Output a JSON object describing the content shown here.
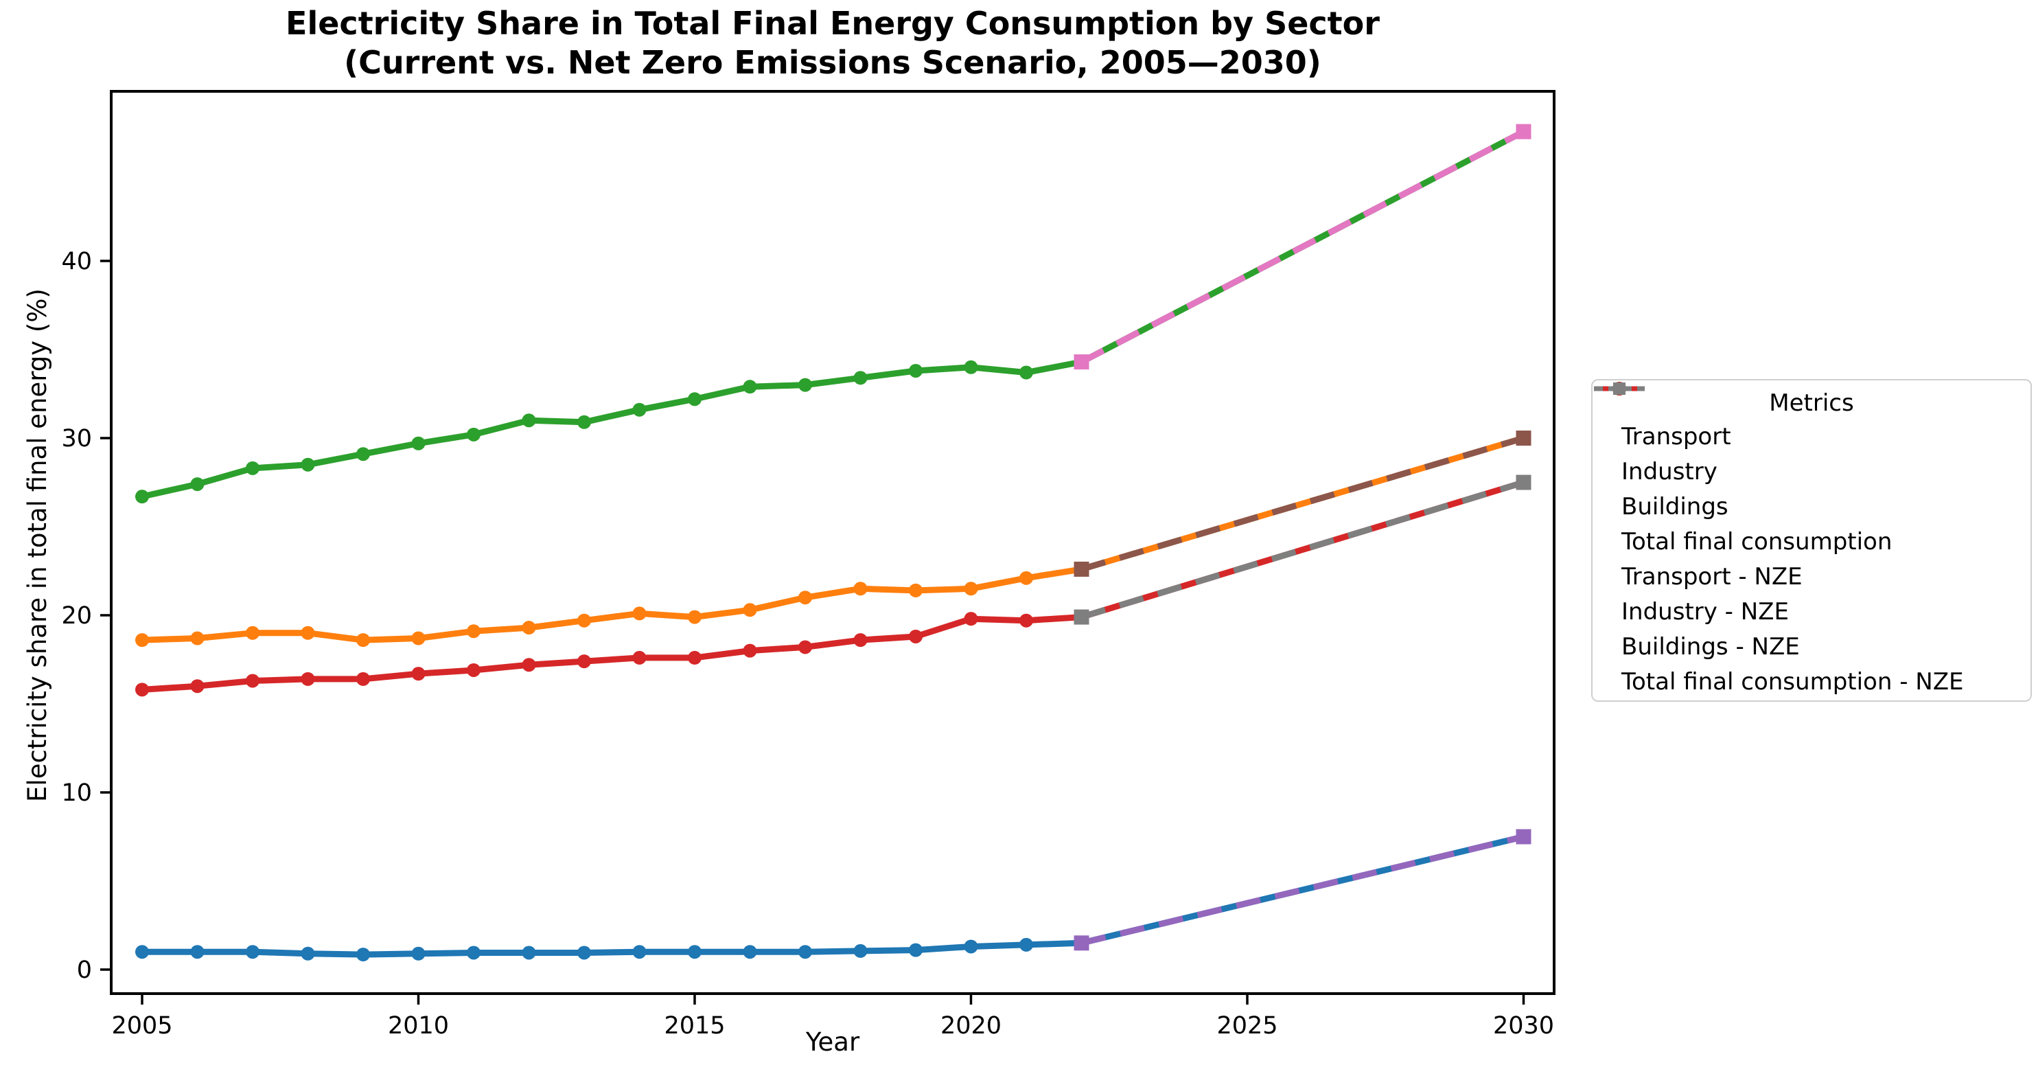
{
  "title": {
    "line1": "Electricity Share in Total Final Energy Consumption by Sector",
    "line2": "(Current vs. Net Zero Emissions Scenario, 2005—2030)"
  },
  "axes": {
    "xlabel": "Year",
    "ylabel": "Electricity share in total final energy (%)",
    "x_ticks": [
      "2005",
      "2010",
      "2015",
      "2020",
      "2025",
      "2030"
    ],
    "y_ticks": [
      "0",
      "10",
      "20",
      "30",
      "40"
    ]
  },
  "legend": {
    "title": "Metrics",
    "entries": [
      "Transport",
      "Industry",
      "Buildings",
      "Total final consumption",
      "Transport - NZE",
      "Industry - NZE",
      "Buildings - NZE",
      "Total final consumption - NZE"
    ]
  },
  "colors": {
    "transport": "#1f77b4",
    "industry": "#ff7f0e",
    "buildings": "#2ca02c",
    "total": "#d62728",
    "transport_nze": "#9467bd",
    "industry_nze": "#8c564b",
    "buildings_nze": "#e377c2",
    "total_nze": "#7f7f7f",
    "spine": "#000000",
    "legend_border": "#cfcfcf"
  },
  "chart_data": {
    "type": "line",
    "title": "Electricity Share in Total Final Energy Consumption by Sector (Current vs. Net Zero Emissions Scenario, 2005—2030)",
    "xlabel": "Year",
    "ylabel": "Electricity share in total final energy (%)",
    "xlim": [
      2004.45,
      2030.55
    ],
    "ylim": [
      -1.3,
      49.6
    ],
    "grid": false,
    "legend_position": "right-outside",
    "legend_title": "Metrics",
    "x_ticks": [
      2005,
      2010,
      2015,
      2020,
      2025,
      2030
    ],
    "y_ticks": [
      0,
      10,
      20,
      30,
      40
    ],
    "series": [
      {
        "name": "Transport",
        "color": "#1f77b4",
        "line_style": "solid",
        "marker": "circle",
        "x": [
          2005,
          2006,
          2007,
          2008,
          2009,
          2010,
          2011,
          2012,
          2013,
          2014,
          2015,
          2016,
          2017,
          2018,
          2019,
          2020,
          2021,
          2022,
          2030
        ],
        "y": [
          1.0,
          1.0,
          1.0,
          0.9,
          0.85,
          0.9,
          0.95,
          0.95,
          0.95,
          1.0,
          1.0,
          1.0,
          1.0,
          1.05,
          1.1,
          1.3,
          1.4,
          1.5,
          7.5
        ]
      },
      {
        "name": "Industry",
        "color": "#ff7f0e",
        "line_style": "solid",
        "marker": "circle",
        "x": [
          2005,
          2006,
          2007,
          2008,
          2009,
          2010,
          2011,
          2012,
          2013,
          2014,
          2015,
          2016,
          2017,
          2018,
          2019,
          2020,
          2021,
          2022,
          2030
        ],
        "y": [
          18.6,
          18.7,
          19.0,
          19.0,
          18.6,
          18.7,
          19.1,
          19.3,
          19.7,
          20.1,
          19.9,
          20.3,
          21.0,
          21.5,
          21.4,
          21.5,
          22.1,
          22.6,
          30.0
        ]
      },
      {
        "name": "Buildings",
        "color": "#2ca02c",
        "line_style": "solid",
        "marker": "circle",
        "x": [
          2005,
          2006,
          2007,
          2008,
          2009,
          2010,
          2011,
          2012,
          2013,
          2014,
          2015,
          2016,
          2017,
          2018,
          2019,
          2020,
          2021,
          2022,
          2030
        ],
        "y": [
          26.7,
          27.4,
          28.3,
          28.5,
          29.1,
          29.7,
          30.2,
          31.0,
          30.9,
          31.6,
          32.2,
          32.9,
          33.0,
          33.4,
          33.8,
          34.0,
          33.7,
          34.3,
          47.3
        ]
      },
      {
        "name": "Total final consumption",
        "color": "#d62728",
        "line_style": "solid",
        "marker": "circle",
        "x": [
          2005,
          2006,
          2007,
          2008,
          2009,
          2010,
          2011,
          2012,
          2013,
          2014,
          2015,
          2016,
          2017,
          2018,
          2019,
          2020,
          2021,
          2022,
          2030
        ],
        "y": [
          15.8,
          16.0,
          16.3,
          16.4,
          16.4,
          16.7,
          16.9,
          17.2,
          17.4,
          17.6,
          17.6,
          18.0,
          18.2,
          18.6,
          18.8,
          19.8,
          19.7,
          19.9,
          27.5
        ]
      },
      {
        "name": "Transport - NZE",
        "color": "#9467bd",
        "line_style": "dashed",
        "marker": "square",
        "x": [
          2022,
          2030
        ],
        "y": [
          1.5,
          7.5
        ]
      },
      {
        "name": "Industry - NZE",
        "color": "#8c564b",
        "line_style": "dashed",
        "marker": "square",
        "x": [
          2022,
          2030
        ],
        "y": [
          22.6,
          30.0
        ]
      },
      {
        "name": "Buildings - NZE",
        "color": "#e377c2",
        "line_style": "dashed",
        "marker": "square",
        "x": [
          2022,
          2030
        ],
        "y": [
          34.3,
          47.3
        ]
      },
      {
        "name": "Total final consumption - NZE",
        "color": "#7f7f7f",
        "line_style": "dashed",
        "marker": "square",
        "x": [
          2022,
          2030
        ],
        "y": [
          19.9,
          27.5
        ]
      }
    ]
  }
}
